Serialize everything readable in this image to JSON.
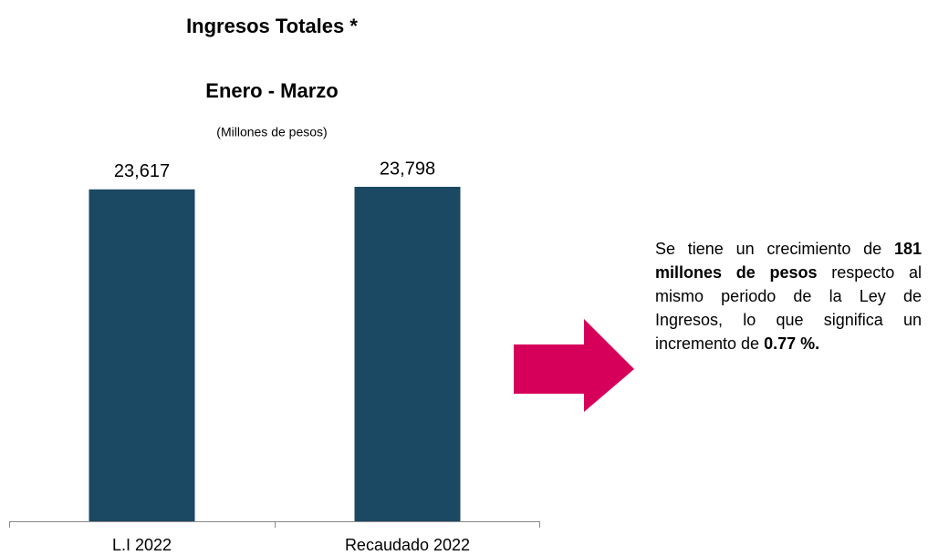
{
  "chart_data": {
    "type": "bar",
    "title": "Ingresos Totales *",
    "subtitle": "Enero - Marzo",
    "unit_note": "(Millones de pesos)",
    "categories": [
      "L.I 2022",
      "Recaudado 2022"
    ],
    "values": [
      23617,
      23798
    ],
    "value_labels": [
      "23,617",
      "23,798"
    ],
    "color": "#1b4862",
    "annotation": [
      "Se tiene un crecimiento de ",
      "181 millones de pesos",
      " respecto al mismo periodo de la Ley de Ingresos, lo que significa un incremento de ",
      "0.77 %."
    ]
  }
}
